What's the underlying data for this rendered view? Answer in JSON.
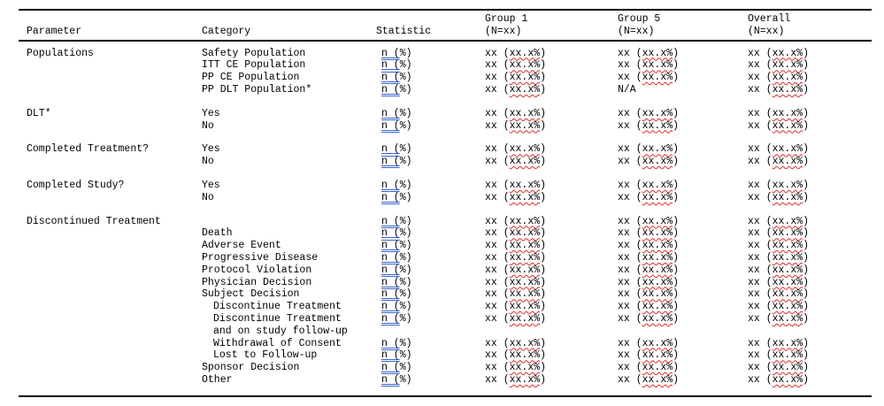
{
  "page": {
    "background": "#ffffff"
  },
  "colors": {
    "text": "#000000",
    "rule": "#000000",
    "grammar_underline_blue": "#3a64c8",
    "spellcheck_red": "#e02a2a"
  },
  "table": {
    "header": {
      "parameter": "Parameter",
      "category": "Category",
      "statistic": "Statistic",
      "group1_line1": "Group 1",
      "group1_line2": "(N=xx)",
      "group5_line1": "Group 5",
      "group5_line2": "(N=xx)",
      "overall_line1": "Overall",
      "overall_line2": "(N=xx)"
    },
    "statistic_cell": {
      "grammar_flagged": "n (",
      "rest": "%)"
    },
    "value_cell": {
      "prefix": "xx (",
      "spell_flagged": "xx.x%",
      "suffix": ")"
    },
    "na_text": "N/A",
    "rows": [
      {
        "parameter": "Populations",
        "category": "Safety Population",
        "indent": 0,
        "statistic": true,
        "group1": "value",
        "group5": "value",
        "overall": "value"
      },
      {
        "parameter": "",
        "category": "ITT CE Population",
        "indent": 0,
        "statistic": true,
        "group1": "value",
        "group5": "value",
        "overall": "value"
      },
      {
        "parameter": "",
        "category": "PP CE Population",
        "indent": 0,
        "statistic": true,
        "group1": "value",
        "group5": "value",
        "overall": "value"
      },
      {
        "parameter": "",
        "category": "PP DLT Population*",
        "indent": 0,
        "statistic": true,
        "group1": "value",
        "group5": "na",
        "overall": "value"
      },
      {
        "type": "spacer"
      },
      {
        "parameter": "DLT*",
        "category": "Yes",
        "indent": 0,
        "statistic": true,
        "group1": "value",
        "group5": "value",
        "overall": "value"
      },
      {
        "parameter": "",
        "category": "No",
        "indent": 0,
        "statistic": true,
        "group1": "value",
        "group5": "value",
        "overall": "value"
      },
      {
        "type": "spacer"
      },
      {
        "parameter": "Completed Treatment?",
        "category": "Yes",
        "indent": 0,
        "statistic": true,
        "group1": "value",
        "group5": "value",
        "overall": "value"
      },
      {
        "parameter": "",
        "category": "No",
        "indent": 0,
        "statistic": true,
        "group1": "value",
        "group5": "value",
        "overall": "value"
      },
      {
        "type": "spacer"
      },
      {
        "parameter": "Completed Study?",
        "category": "Yes",
        "indent": 0,
        "statistic": true,
        "group1": "value",
        "group5": "value",
        "overall": "value"
      },
      {
        "parameter": "",
        "category": "No",
        "indent": 0,
        "statistic": true,
        "group1": "value",
        "group5": "value",
        "overall": "value"
      },
      {
        "type": "spacer"
      },
      {
        "parameter": "Discontinued Treatment",
        "category": "",
        "indent": 0,
        "statistic": true,
        "group1": "value",
        "group5": "value",
        "overall": "value"
      },
      {
        "parameter": "",
        "category": "Death",
        "indent": 0,
        "statistic": true,
        "group1": "value",
        "group5": "value",
        "overall": "value"
      },
      {
        "parameter": "",
        "category": "Adverse Event",
        "indent": 0,
        "statistic": true,
        "group1": "value",
        "group5": "value",
        "overall": "value"
      },
      {
        "parameter": "",
        "category": "Progressive Disease",
        "indent": 0,
        "statistic": true,
        "group1": "value",
        "group5": "value",
        "overall": "value"
      },
      {
        "parameter": "",
        "category": "Protocol Violation",
        "indent": 0,
        "statistic": true,
        "group1": "value",
        "group5": "value",
        "overall": "value"
      },
      {
        "parameter": "",
        "category": "Physician Decision",
        "indent": 0,
        "statistic": true,
        "group1": "value",
        "group5": "value",
        "overall": "value"
      },
      {
        "parameter": "",
        "category": "Subject Decision",
        "indent": 0,
        "statistic": true,
        "group1": "value",
        "group5": "value",
        "overall": "value"
      },
      {
        "parameter": "",
        "category": "Discontinue Treatment",
        "indent": 1,
        "statistic": true,
        "group1": "value",
        "group5": "value",
        "overall": "value"
      },
      {
        "parameter": "",
        "category": "Discontinue Treatment",
        "indent": 1,
        "statistic": true,
        "group1": "value",
        "group5": "value",
        "overall": "value"
      },
      {
        "parameter": "",
        "category": "and on study follow-up",
        "indent": 1,
        "statistic": false,
        "group1": null,
        "group5": null,
        "overall": null
      },
      {
        "parameter": "",
        "category": "Withdrawal of Consent",
        "indent": 1,
        "statistic": true,
        "group1": "value",
        "group5": "value",
        "overall": "value"
      },
      {
        "parameter": "",
        "category": "Lost to Follow-up",
        "indent": 1,
        "statistic": true,
        "group1": "value",
        "group5": "value",
        "overall": "value"
      },
      {
        "parameter": "",
        "category": "Sponsor Decision",
        "indent": 0,
        "statistic": true,
        "group1": "value",
        "group5": "value",
        "overall": "value"
      },
      {
        "parameter": "",
        "category": "Other",
        "indent": 0,
        "statistic": true,
        "group1": "value",
        "group5": "value",
        "overall": "value"
      }
    ]
  }
}
